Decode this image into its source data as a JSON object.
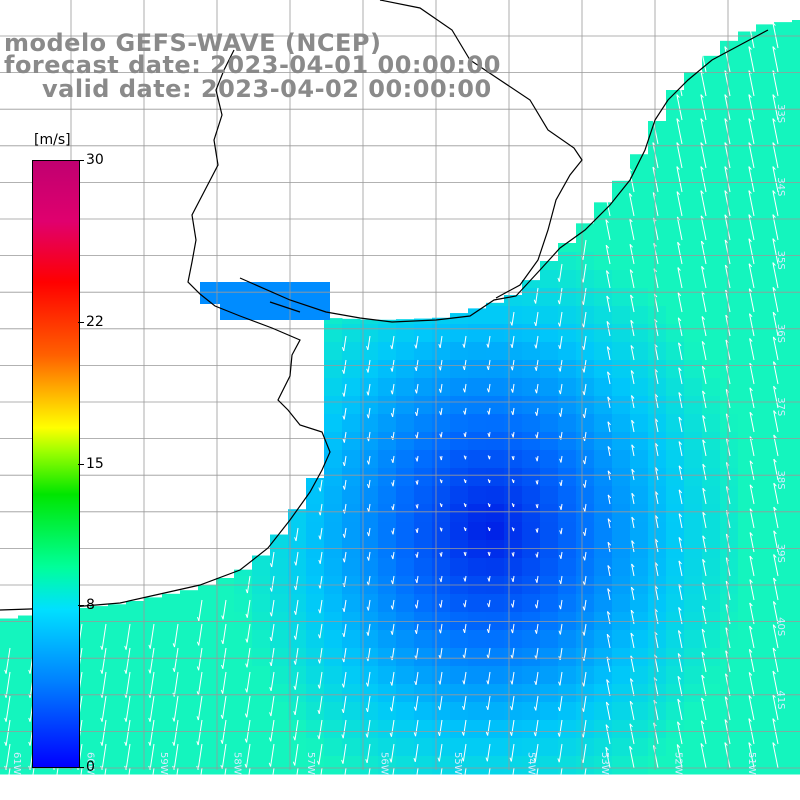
{
  "title": {
    "model": "modelo GEFS-WAVE (NCEP)",
    "forecast": "forecast date: 2023-04-01 00:00:00",
    "valid": "valid date: 2023-04-02 00:00:00"
  },
  "colorbar": {
    "unit": "[m/s]",
    "ticks": [
      {
        "label": "30",
        "value": 30
      },
      {
        "label": "22",
        "value": 22
      },
      {
        "label": "15",
        "value": 15
      },
      {
        "label": "8",
        "value": 8
      },
      {
        "label": "0",
        "value": 0
      }
    ],
    "min": 0,
    "max": 30
  },
  "lon_labels": [
    "61W",
    "60W",
    "59W",
    "58W",
    "57W",
    "56W",
    "55W",
    "54W",
    "53W",
    "52W",
    "51W"
  ],
  "lat_labels": [
    "33S",
    "34S",
    "35S",
    "36S",
    "37S",
    "38S",
    "39S",
    "40S",
    "41S"
  ],
  "colors": {
    "land": "#ffffff",
    "grid": "#999999",
    "coast": "#000000",
    "arrow": "#ffffff",
    "title": "#8a8a8a"
  }
}
